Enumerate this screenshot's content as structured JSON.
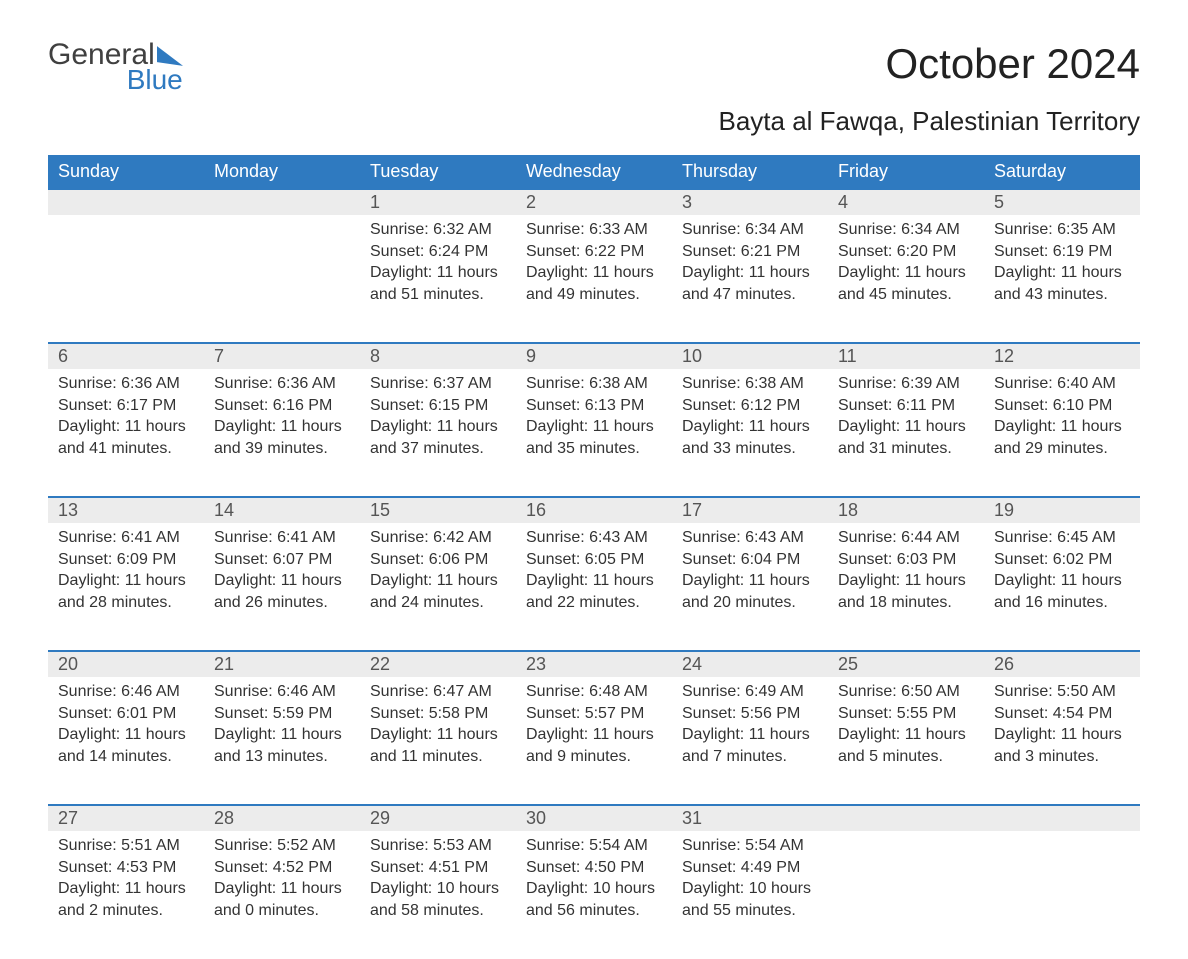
{
  "logo": {
    "text1": "General",
    "text2": "Blue"
  },
  "title": "October 2024",
  "location": "Bayta al Fawqa, Palestinian Territory",
  "colors": {
    "header_bg": "#2f7ac0",
    "header_text": "#ffffff",
    "daynum_bg": "#ececec",
    "rule": "#2f7ac0",
    "body_bg": "#ffffff",
    "text": "#333333"
  },
  "weekdays": [
    "Sunday",
    "Monday",
    "Tuesday",
    "Wednesday",
    "Thursday",
    "Friday",
    "Saturday"
  ],
  "weeks": [
    [
      null,
      null,
      {
        "n": "1",
        "sr": "6:32 AM",
        "ss": "6:24 PM",
        "dl": "11 hours and 51 minutes."
      },
      {
        "n": "2",
        "sr": "6:33 AM",
        "ss": "6:22 PM",
        "dl": "11 hours and 49 minutes."
      },
      {
        "n": "3",
        "sr": "6:34 AM",
        "ss": "6:21 PM",
        "dl": "11 hours and 47 minutes."
      },
      {
        "n": "4",
        "sr": "6:34 AM",
        "ss": "6:20 PM",
        "dl": "11 hours and 45 minutes."
      },
      {
        "n": "5",
        "sr": "6:35 AM",
        "ss": "6:19 PM",
        "dl": "11 hours and 43 minutes."
      }
    ],
    [
      {
        "n": "6",
        "sr": "6:36 AM",
        "ss": "6:17 PM",
        "dl": "11 hours and 41 minutes."
      },
      {
        "n": "7",
        "sr": "6:36 AM",
        "ss": "6:16 PM",
        "dl": "11 hours and 39 minutes."
      },
      {
        "n": "8",
        "sr": "6:37 AM",
        "ss": "6:15 PM",
        "dl": "11 hours and 37 minutes."
      },
      {
        "n": "9",
        "sr": "6:38 AM",
        "ss": "6:13 PM",
        "dl": "11 hours and 35 minutes."
      },
      {
        "n": "10",
        "sr": "6:38 AM",
        "ss": "6:12 PM",
        "dl": "11 hours and 33 minutes."
      },
      {
        "n": "11",
        "sr": "6:39 AM",
        "ss": "6:11 PM",
        "dl": "11 hours and 31 minutes."
      },
      {
        "n": "12",
        "sr": "6:40 AM",
        "ss": "6:10 PM",
        "dl": "11 hours and 29 minutes."
      }
    ],
    [
      {
        "n": "13",
        "sr": "6:41 AM",
        "ss": "6:09 PM",
        "dl": "11 hours and 28 minutes."
      },
      {
        "n": "14",
        "sr": "6:41 AM",
        "ss": "6:07 PM",
        "dl": "11 hours and 26 minutes."
      },
      {
        "n": "15",
        "sr": "6:42 AM",
        "ss": "6:06 PM",
        "dl": "11 hours and 24 minutes."
      },
      {
        "n": "16",
        "sr": "6:43 AM",
        "ss": "6:05 PM",
        "dl": "11 hours and 22 minutes."
      },
      {
        "n": "17",
        "sr": "6:43 AM",
        "ss": "6:04 PM",
        "dl": "11 hours and 20 minutes."
      },
      {
        "n": "18",
        "sr": "6:44 AM",
        "ss": "6:03 PM",
        "dl": "11 hours and 18 minutes."
      },
      {
        "n": "19",
        "sr": "6:45 AM",
        "ss": "6:02 PM",
        "dl": "11 hours and 16 minutes."
      }
    ],
    [
      {
        "n": "20",
        "sr": "6:46 AM",
        "ss": "6:01 PM",
        "dl": "11 hours and 14 minutes."
      },
      {
        "n": "21",
        "sr": "6:46 AM",
        "ss": "5:59 PM",
        "dl": "11 hours and 13 minutes."
      },
      {
        "n": "22",
        "sr": "6:47 AM",
        "ss": "5:58 PM",
        "dl": "11 hours and 11 minutes."
      },
      {
        "n": "23",
        "sr": "6:48 AM",
        "ss": "5:57 PM",
        "dl": "11 hours and 9 minutes."
      },
      {
        "n": "24",
        "sr": "6:49 AM",
        "ss": "5:56 PM",
        "dl": "11 hours and 7 minutes."
      },
      {
        "n": "25",
        "sr": "6:50 AM",
        "ss": "5:55 PM",
        "dl": "11 hours and 5 minutes."
      },
      {
        "n": "26",
        "sr": "5:50 AM",
        "ss": "4:54 PM",
        "dl": "11 hours and 3 minutes."
      }
    ],
    [
      {
        "n": "27",
        "sr": "5:51 AM",
        "ss": "4:53 PM",
        "dl": "11 hours and 2 minutes."
      },
      {
        "n": "28",
        "sr": "5:52 AM",
        "ss": "4:52 PM",
        "dl": "11 hours and 0 minutes."
      },
      {
        "n": "29",
        "sr": "5:53 AM",
        "ss": "4:51 PM",
        "dl": "10 hours and 58 minutes."
      },
      {
        "n": "30",
        "sr": "5:54 AM",
        "ss": "4:50 PM",
        "dl": "10 hours and 56 minutes."
      },
      {
        "n": "31",
        "sr": "5:54 AM",
        "ss": "4:49 PM",
        "dl": "10 hours and 55 minutes."
      },
      null,
      null
    ]
  ],
  "labels": {
    "sunrise": "Sunrise: ",
    "sunset": "Sunset: ",
    "daylight": "Daylight: "
  }
}
